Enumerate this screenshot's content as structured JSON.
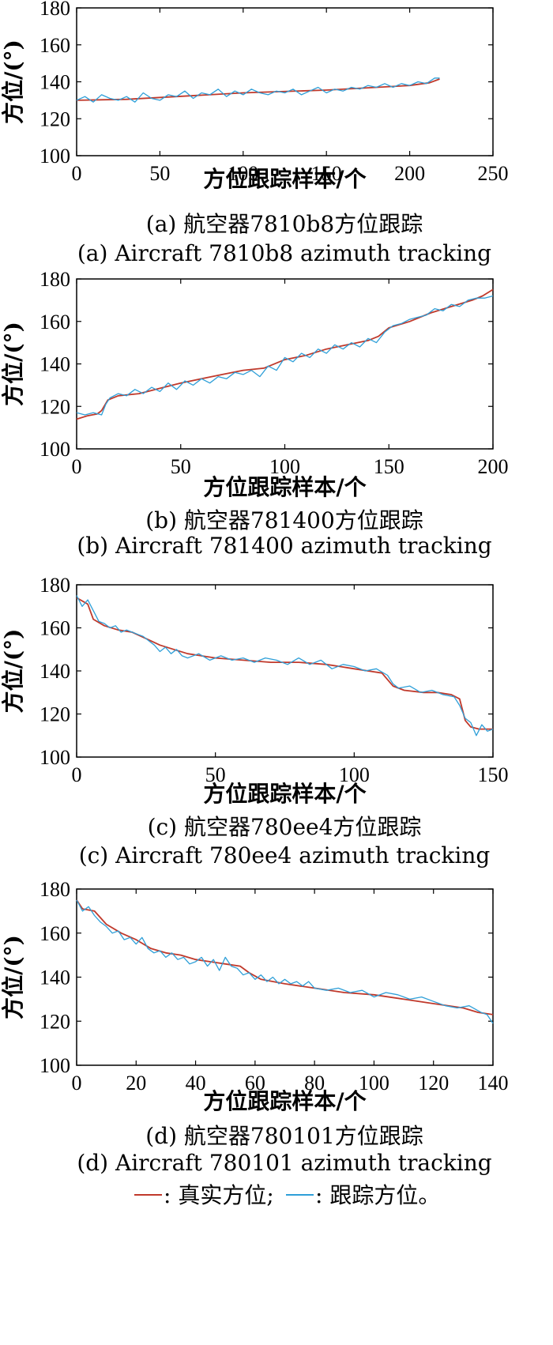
{
  "chart_data": [
    {
      "type": "line",
      "xlabel": "方位跟踪样本/个",
      "ylabel": "方位/(°)",
      "caption_cn": "(a) 航空器7810b8方位跟踪",
      "caption_en": "(a) Aircraft 7810b8 azimuth tracking",
      "xlim": [
        0,
        250
      ],
      "ylim": [
        100,
        180
      ],
      "xticks": [
        "0",
        "50",
        "100",
        "150",
        "200",
        "250"
      ],
      "yticks": [
        "100",
        "120",
        "140",
        "160",
        "180"
      ],
      "series": [
        {
          "name": "真实方位",
          "color": "#c0392b",
          "x": [
            0,
            30,
            60,
            100,
            150,
            200,
            212,
            218
          ],
          "y": [
            130,
            130.5,
            132,
            134,
            135.5,
            138,
            139.5,
            141.5
          ]
        },
        {
          "name": "跟踪方位",
          "color": "#2e9fd8",
          "x": [
            0,
            5,
            10,
            15,
            20,
            25,
            30,
            35,
            40,
            45,
            50,
            55,
            60,
            65,
            70,
            75,
            80,
            85,
            90,
            95,
            100,
            105,
            110,
            115,
            120,
            125,
            130,
            135,
            140,
            145,
            150,
            155,
            160,
            165,
            170,
            175,
            180,
            185,
            190,
            195,
            200,
            205,
            210,
            215,
            218
          ],
          "y": [
            130,
            132,
            129,
            133,
            131,
            130,
            132,
            129,
            134,
            131,
            130,
            133,
            132,
            135,
            131,
            134,
            133,
            136,
            132,
            135,
            133,
            136,
            134,
            133,
            135,
            134,
            136,
            133,
            135,
            137,
            134,
            136,
            135,
            137,
            136,
            138,
            137,
            139,
            137,
            139,
            138,
            140,
            139,
            142,
            142
          ]
        }
      ]
    },
    {
      "type": "line",
      "xlabel": "方位跟踪样本/个",
      "ylabel": "方位/(°)",
      "caption_cn": "(b) 航空器781400方位跟踪",
      "caption_en": "(b) Aircraft 781400 azimuth tracking",
      "xlim": [
        0,
        200
      ],
      "ylim": [
        100,
        180
      ],
      "xticks": [
        "0",
        "50",
        "100",
        "150",
        "200"
      ],
      "yticks": [
        "100",
        "120",
        "140",
        "160",
        "180"
      ],
      "series": [
        {
          "name": "真实方位",
          "color": "#c0392b",
          "x": [
            0,
            5,
            10,
            12,
            15,
            20,
            30,
            40,
            50,
            60,
            70,
            80,
            90,
            100,
            110,
            120,
            130,
            140,
            145,
            150,
            160,
            170,
            180,
            190,
            195,
            200
          ],
          "y": [
            114,
            115.5,
            116.5,
            118,
            123,
            125,
            126,
            128.5,
            131,
            133,
            135,
            137,
            138,
            142,
            144,
            147,
            149,
            151,
            153,
            157,
            160,
            164,
            167,
            170,
            172,
            175
          ]
        },
        {
          "name": "跟踪方位",
          "color": "#2e9fd8",
          "x": [
            0,
            4,
            8,
            12,
            14,
            16,
            20,
            24,
            28,
            32,
            36,
            40,
            44,
            48,
            52,
            56,
            60,
            64,
            68,
            72,
            76,
            80,
            84,
            88,
            92,
            96,
            100,
            104,
            108,
            112,
            116,
            120,
            124,
            128,
            132,
            136,
            140,
            144,
            148,
            152,
            156,
            160,
            164,
            168,
            172,
            176,
            180,
            184,
            188,
            192,
            196,
            200
          ],
          "y": [
            117,
            116,
            117,
            116,
            121,
            124,
            126,
            125,
            128,
            126,
            129,
            127,
            131,
            128,
            132,
            130,
            133,
            131,
            134,
            133,
            136,
            135,
            137,
            134,
            139,
            137,
            143,
            141,
            145,
            143,
            147,
            145,
            149,
            147,
            150,
            148,
            152,
            150,
            155,
            158,
            159,
            161,
            162,
            163,
            166,
            165,
            168,
            167,
            170,
            171,
            171,
            172
          ]
        }
      ]
    },
    {
      "type": "line",
      "xlabel": "方位跟踪样本/个",
      "ylabel": "方位/(°)",
      "caption_cn": "(c) 航空器780ee4方位跟踪",
      "caption_en": "(c) Aircraft 780ee4 azimuth tracking",
      "xlim": [
        0,
        150
      ],
      "ylim": [
        100,
        180
      ],
      "xticks": [
        "0",
        "50",
        "100",
        "150"
      ],
      "yticks": [
        "100",
        "120",
        "140",
        "160",
        "180"
      ],
      "series": [
        {
          "name": "真实方位",
          "color": "#c0392b",
          "x": [
            0,
            4,
            6,
            10,
            15,
            20,
            25,
            30,
            35,
            40,
            50,
            60,
            70,
            80,
            90,
            95,
            100,
            105,
            110,
            112,
            114,
            118,
            125,
            130,
            135,
            138,
            140,
            142,
            145,
            150
          ],
          "y": [
            174,
            171,
            164,
            161,
            159,
            158,
            155,
            152,
            150,
            148,
            146,
            145,
            144,
            144,
            143,
            142,
            141,
            140,
            139,
            136,
            133,
            131,
            130,
            130,
            129,
            127,
            117,
            114,
            113,
            113
          ]
        },
        {
          "name": "跟踪方位",
          "color": "#2e9fd8",
          "x": [
            0,
            2,
            4,
            6,
            8,
            10,
            12,
            14,
            16,
            18,
            20,
            22,
            24,
            26,
            28,
            30,
            32,
            34,
            36,
            38,
            40,
            44,
            48,
            52,
            56,
            60,
            64,
            68,
            72,
            76,
            80,
            84,
            88,
            92,
            96,
            100,
            104,
            108,
            112,
            114,
            116,
            120,
            124,
            128,
            132,
            136,
            138,
            140,
            142,
            144,
            146,
            148,
            150
          ],
          "y": [
            175,
            170,
            173,
            168,
            163,
            162,
            160,
            161,
            158,
            159,
            158,
            157,
            156,
            154,
            152,
            149,
            151,
            148,
            150,
            147,
            146,
            148,
            145,
            147,
            145,
            146,
            144,
            146,
            145,
            143,
            146,
            143,
            145,
            141,
            143,
            142,
            140,
            141,
            138,
            134,
            132,
            133,
            130,
            131,
            129,
            128,
            124,
            118,
            116,
            110,
            115,
            112,
            113
          ]
        }
      ]
    },
    {
      "type": "line",
      "xlabel": "方位跟踪样本/个",
      "ylabel": "方位/(°)",
      "caption_cn": "(d) 航空器780101方位跟踪",
      "caption_en": "(d) Aircraft 780101 azimuth tracking",
      "xlim": [
        0,
        140
      ],
      "ylim": [
        100,
        180
      ],
      "xticks": [
        "0",
        "20",
        "40",
        "60",
        "80",
        "100",
        "120",
        "140"
      ],
      "yticks": [
        "100",
        "120",
        "140",
        "160",
        "180"
      ],
      "series": [
        {
          "name": "真实方位",
          "color": "#c0392b",
          "x": [
            0,
            2,
            6,
            10,
            15,
            20,
            25,
            30,
            35,
            40,
            45,
            50,
            55,
            58,
            62,
            70,
            80,
            90,
            100,
            110,
            120,
            130,
            135,
            140
          ],
          "y": [
            175,
            171,
            170,
            164,
            160,
            157,
            153,
            151,
            150,
            148,
            147,
            146,
            145,
            142,
            139,
            137,
            135,
            133,
            132,
            130,
            128,
            126,
            124,
            123
          ]
        },
        {
          "name": "跟踪方位",
          "color": "#2e9fd8",
          "x": [
            0,
            2,
            4,
            6,
            8,
            10,
            12,
            14,
            16,
            18,
            20,
            22,
            24,
            26,
            28,
            30,
            32,
            34,
            36,
            38,
            40,
            42,
            44,
            46,
            48,
            50,
            52,
            54,
            56,
            58,
            60,
            62,
            64,
            66,
            68,
            70,
            72,
            74,
            76,
            78,
            80,
            84,
            88,
            92,
            96,
            100,
            104,
            108,
            112,
            116,
            120,
            124,
            128,
            132,
            136,
            138,
            140
          ],
          "y": [
            175,
            170,
            172,
            168,
            165,
            163,
            160,
            161,
            157,
            158,
            155,
            158,
            153,
            151,
            152,
            149,
            151,
            148,
            149,
            146,
            147,
            149,
            145,
            148,
            143,
            149,
            145,
            144,
            141,
            142,
            139,
            141,
            138,
            140,
            137,
            139,
            137,
            138,
            136,
            138,
            135,
            134,
            135,
            133,
            134,
            131,
            133,
            132,
            130,
            131,
            129,
            127,
            126,
            127,
            124,
            123,
            119
          ]
        }
      ]
    }
  ],
  "legend": {
    "true_label": ": 真实方位;",
    "track_label": ": 跟踪方位。",
    "true_color": "#c0392b",
    "track_color": "#2e9fd8"
  }
}
